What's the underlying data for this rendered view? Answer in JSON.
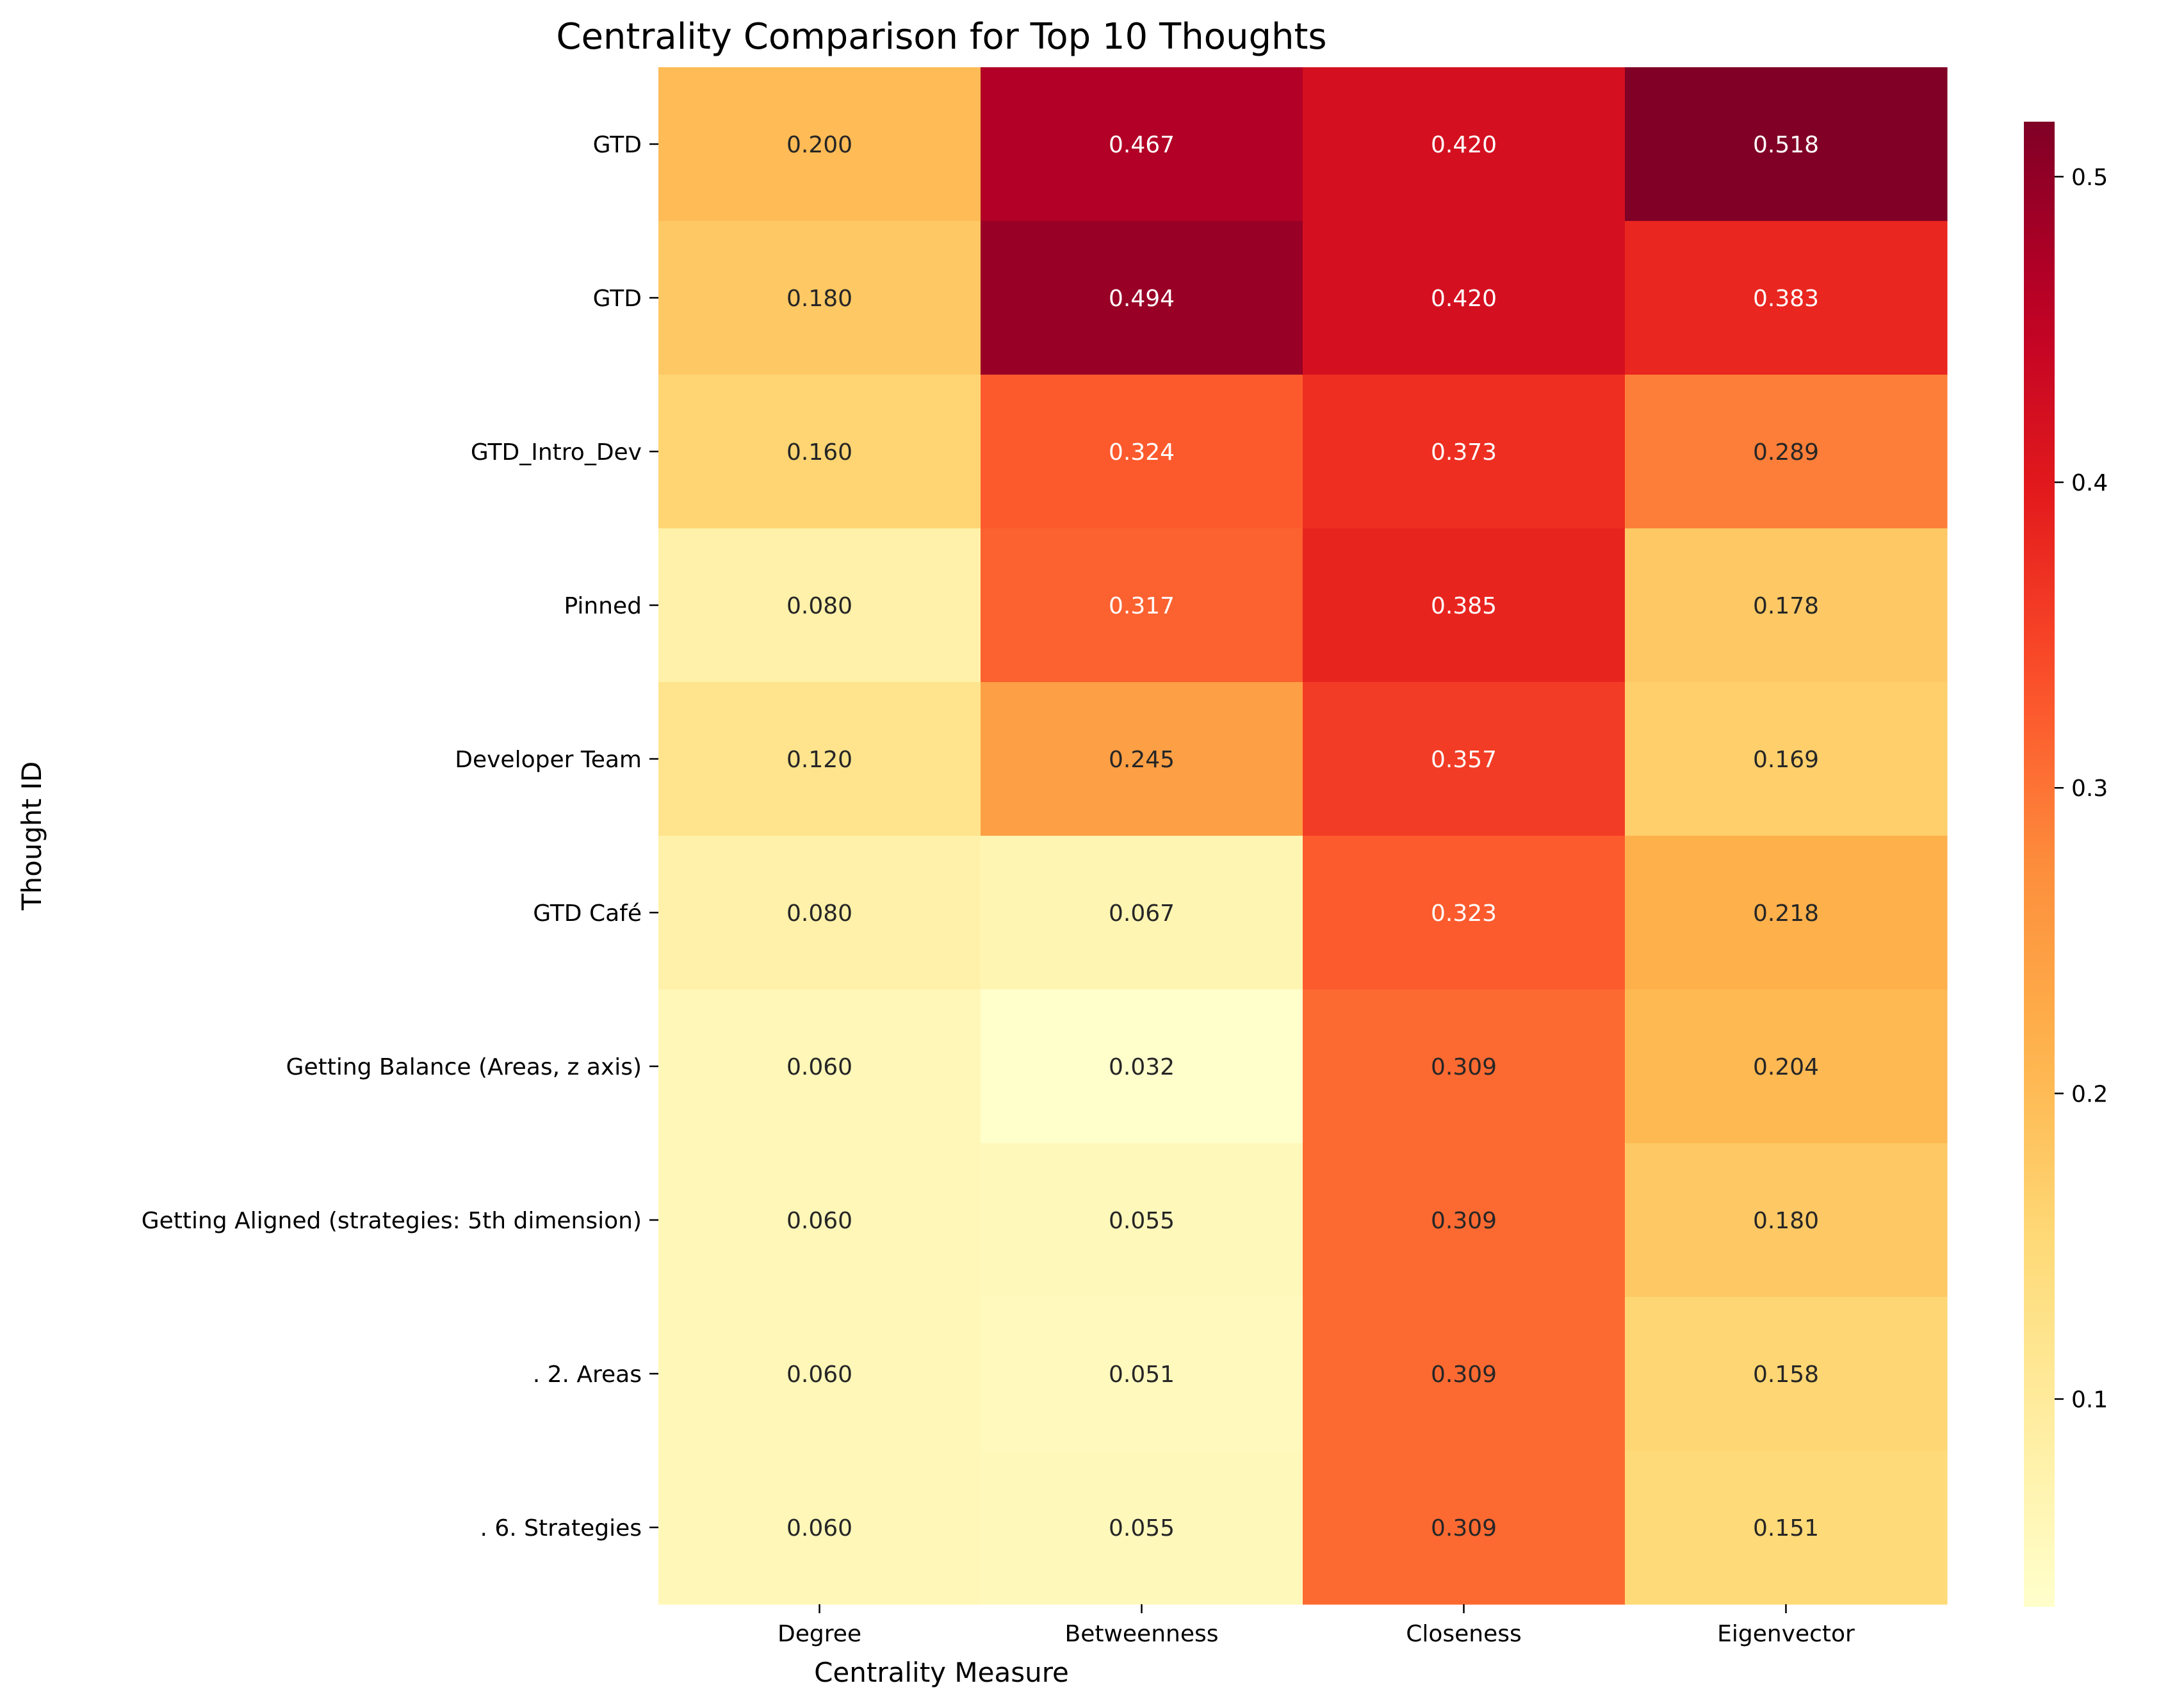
{
  "chart_data": {
    "type": "heatmap",
    "title": "Centrality Comparison for Top 10 Thoughts",
    "xlabel": "Centrality Measure",
    "ylabel": "Thought ID",
    "columns": [
      "Degree",
      "Betweenness",
      "Closeness",
      "Eigenvector"
    ],
    "rows": [
      "GTD",
      "GTD",
      "GTD_Intro_Dev",
      "Pinned",
      "Developer Team",
      "GTD Café",
      "Getting Balance (Areas, z axis)",
      "Getting Aligned (strategies: 5th dimension)",
      ". 2. Areas",
      ". 6. Strategies"
    ],
    "values": [
      [
        0.2,
        0.467,
        0.42,
        0.518
      ],
      [
        0.18,
        0.494,
        0.42,
        0.383
      ],
      [
        0.16,
        0.324,
        0.373,
        0.289
      ],
      [
        0.08,
        0.317,
        0.385,
        0.178
      ],
      [
        0.12,
        0.245,
        0.357,
        0.169
      ],
      [
        0.08,
        0.067,
        0.323,
        0.218
      ],
      [
        0.06,
        0.032,
        0.309,
        0.204
      ],
      [
        0.06,
        0.055,
        0.309,
        0.18
      ],
      [
        0.06,
        0.051,
        0.309,
        0.158
      ],
      [
        0.06,
        0.055,
        0.309,
        0.151
      ]
    ],
    "value_format": "0.000",
    "colormap": "YlOrRd",
    "colorbar": {
      "range": [
        0.032,
        0.518
      ],
      "ticks": [
        0.1,
        0.2,
        0.3,
        0.4,
        0.5
      ],
      "tick_labels": [
        "0.1",
        "0.2",
        "0.3",
        "0.4",
        "0.5"
      ]
    }
  }
}
